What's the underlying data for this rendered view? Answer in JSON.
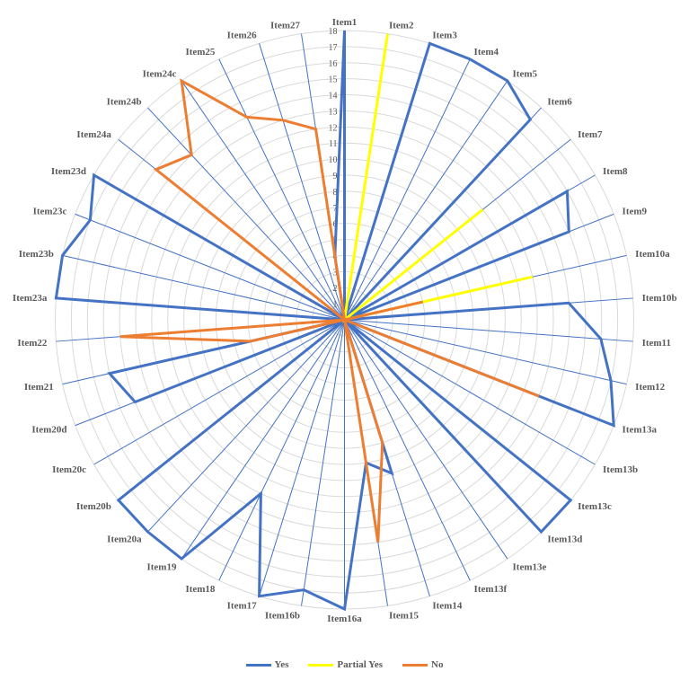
{
  "chart_data": {
    "type": "radar",
    "categories": [
      "Item1",
      "Item2",
      "Item3",
      "Item4",
      "Item5",
      "Item6",
      "Item7",
      "Item8",
      "Item9",
      "Item10a",
      "Item10b",
      "Item11",
      "Item12",
      "Item13a",
      "Item13b",
      "Item13c",
      "Item13d",
      "Item13e",
      "Item13f",
      "Item14",
      "Item15",
      "Item16a",
      "Item16b",
      "Item17",
      "Item18",
      "Item19",
      "Item20a",
      "Item20b",
      "Item20c",
      "Item20d",
      "Item21",
      "Item22",
      "Item23a",
      "Item23b",
      "Item23c",
      "Item23d",
      "Item24a",
      "Item24b",
      "Item24c",
      "Item25",
      "Item26",
      "Item27"
    ],
    "rlim": [
      0,
      18
    ],
    "ticks": [
      "0",
      "1",
      "2",
      "3",
      "4",
      "5",
      "6",
      "7",
      "8",
      "9",
      "10",
      "11",
      "12",
      "13",
      "14",
      "15",
      "16",
      "17",
      "18"
    ],
    "grid": true,
    "legend_position": "bottom",
    "series": [
      {
        "name": "Yes",
        "color": "#4472C4",
        "values": [
          18,
          0,
          18,
          18,
          18,
          17,
          0,
          16,
          15,
          0,
          14,
          16,
          17,
          18,
          0,
          18,
          18,
          0,
          0,
          10,
          9,
          18,
          17,
          18,
          12,
          18,
          18,
          18,
          0,
          14,
          15,
          0,
          18,
          18,
          17,
          18,
          0,
          0,
          0,
          0,
          0,
          4
        ]
      },
      {
        "name": "Partial Yes",
        "color": "#FFFF00",
        "values": [
          0,
          18,
          0,
          0,
          0,
          0,
          11,
          0,
          0,
          12,
          0,
          0,
          0,
          0,
          0,
          0,
          0,
          0,
          0,
          0,
          0,
          0,
          0,
          0,
          0,
          0,
          0,
          0,
          0,
          0,
          0,
          0,
          0,
          0,
          0,
          0,
          0,
          0,
          0,
          0,
          0,
          0
        ]
      },
      {
        "name": "No",
        "color": "#ED7D31",
        "values": [
          0,
          0,
          0,
          0,
          0,
          0,
          0,
          0,
          0,
          5,
          0,
          0,
          0,
          13,
          0,
          0,
          0,
          0,
          0,
          8,
          14,
          0,
          0,
          0,
          0,
          0,
          0,
          0,
          0,
          0,
          6,
          14,
          0,
          0,
          0,
          0,
          15,
          14,
          18,
          14,
          13,
          12
        ]
      }
    ]
  }
}
